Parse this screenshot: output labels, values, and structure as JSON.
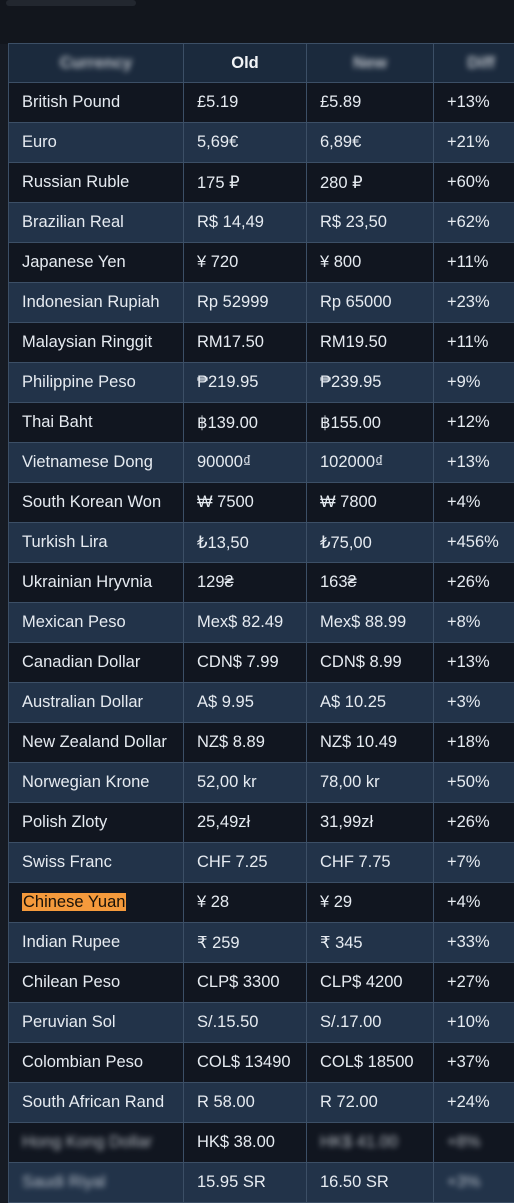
{
  "table": {
    "headers": [
      "Currency",
      "Old",
      "New",
      "Diff"
    ],
    "rows": [
      {
        "currency": "British Pound",
        "old": "£5.19",
        "new": "£5.89",
        "diff": "+13%"
      },
      {
        "currency": "Euro",
        "old": "5,69€",
        "new": "6,89€",
        "diff": "+21%"
      },
      {
        "currency": "Russian Ruble",
        "old": "175 ₽",
        "new": "280 ₽",
        "diff": "+60%"
      },
      {
        "currency": "Brazilian Real",
        "old": "R$ 14,49",
        "new": "R$ 23,50",
        "diff": "+62%"
      },
      {
        "currency": "Japanese Yen",
        "old": "¥ 720",
        "new": "¥ 800",
        "diff": "+11%"
      },
      {
        "currency": "Indonesian Rupiah",
        "old": "Rp 52999",
        "new": "Rp 65000",
        "diff": "+23%"
      },
      {
        "currency": "Malaysian Ringgit",
        "old": "RM17.50",
        "new": "RM19.50",
        "diff": "+11%"
      },
      {
        "currency": "Philippine Peso",
        "old": "₱219.95",
        "new": "₱239.95",
        "diff": "+9%"
      },
      {
        "currency": "Thai Baht",
        "old": "฿139.00",
        "new": "฿155.00",
        "diff": "+12%"
      },
      {
        "currency": "Vietnamese Dong",
        "old": "90000₫",
        "new": "102000₫",
        "diff": "+13%"
      },
      {
        "currency": "South Korean Won",
        "old": "₩ 7500",
        "new": "₩ 7800",
        "diff": "+4%"
      },
      {
        "currency": "Turkish Lira",
        "old": "₺13,50",
        "new": "₺75,00",
        "diff": "+456%"
      },
      {
        "currency": "Ukrainian Hryvnia",
        "old": "129₴",
        "new": "163₴",
        "diff": "+26%"
      },
      {
        "currency": "Mexican Peso",
        "old": "Mex$ 82.49",
        "new": "Mex$ 88.99",
        "diff": "+8%"
      },
      {
        "currency": "Canadian Dollar",
        "old": "CDN$ 7.99",
        "new": "CDN$ 8.99",
        "diff": "+13%"
      },
      {
        "currency": "Australian Dollar",
        "old": "A$ 9.95",
        "new": "A$ 10.25",
        "diff": "+3%"
      },
      {
        "currency": "New Zealand Dollar",
        "old": "NZ$ 8.89",
        "new": "NZ$ 10.49",
        "diff": "+18%"
      },
      {
        "currency": "Norwegian Krone",
        "old": "52,00 kr",
        "new": "78,00 kr",
        "diff": "+50%"
      },
      {
        "currency": "Polish Zloty",
        "old": "25,49zł",
        "new": "31,99zł",
        "diff": "+26%"
      },
      {
        "currency": "Swiss Franc",
        "old": "CHF 7.25",
        "new": "CHF 7.75",
        "diff": "+7%"
      },
      {
        "currency": "Chinese Yuan",
        "old": "¥ 28",
        "new": "¥ 29",
        "diff": "+4%"
      },
      {
        "currency": "Indian Rupee",
        "old": "₹ 259",
        "new": "₹ 345",
        "diff": "+33%"
      },
      {
        "currency": "Chilean Peso",
        "old": "CLP$ 3300",
        "new": "CLP$ 4200",
        "diff": "+27%"
      },
      {
        "currency": "Peruvian Sol",
        "old": "S/.15.50",
        "new": "S/.17.00",
        "diff": "+10%"
      },
      {
        "currency": "Colombian Peso",
        "old": "COL$ 13490",
        "new": "COL$ 18500",
        "diff": "+37%"
      },
      {
        "currency": "South African Rand",
        "old": "R 58.00",
        "new": "R 72.00",
        "diff": "+24%"
      },
      {
        "currency": "Hong Kong Dollar",
        "old": "HK$ 38.00",
        "new": "HK$ 41.00",
        "diff": "+8%"
      },
      {
        "currency": "Saudi Riyal",
        "old": "15.95 SR",
        "new": "16.50 SR",
        "diff": "+3%"
      }
    ]
  },
  "highlighted_currency": "Chinese Yuan",
  "colors": {
    "row_even": "#223349",
    "row_odd": "#111620",
    "border": "#3c4f66",
    "highlight": "#f59a3c"
  }
}
